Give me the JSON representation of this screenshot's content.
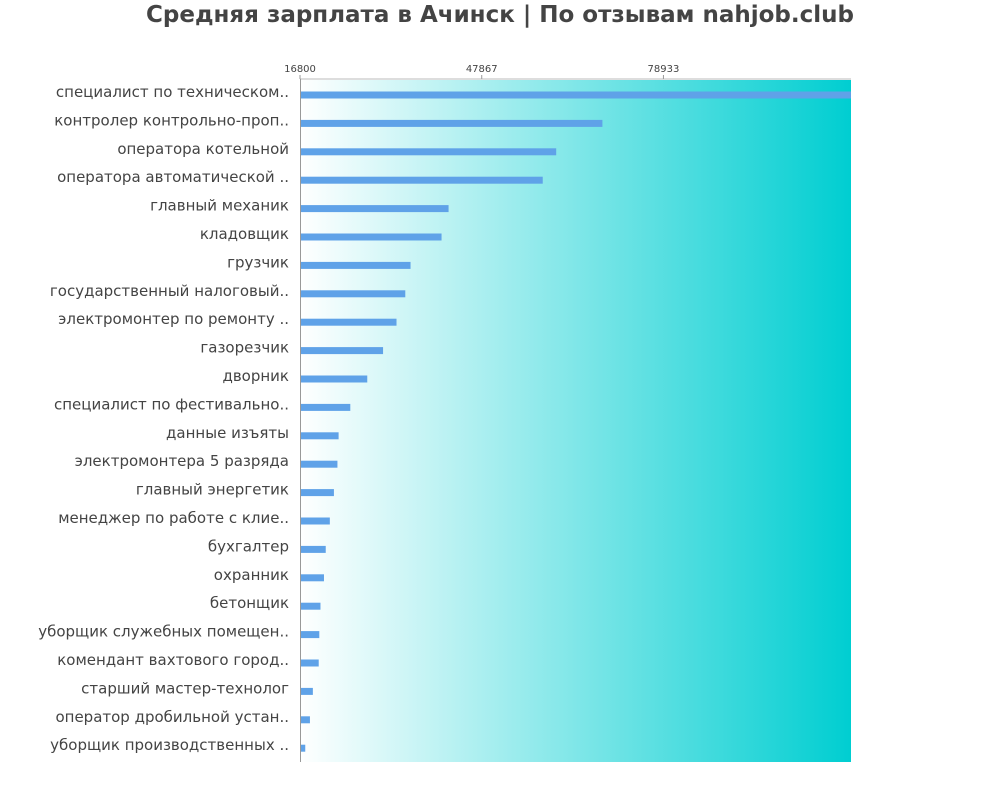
{
  "chart_data": {
    "type": "bar",
    "orientation": "horizontal",
    "title": "Средняя зарплата в Ачинск | По отзывам nahjob.club",
    "xlabel": "",
    "ylabel": "",
    "xlim": [
      16800,
      111000
    ],
    "x_ticks": [
      16800,
      47867,
      78933
    ],
    "x_tick_labels": [
      "16800",
      "47867",
      "78933"
    ],
    "x_axis_position": "top",
    "grid": false,
    "legend": "none",
    "categories": [
      "специалист по техническом..",
      "контролер контрольно-проп..",
      "оператора котельной",
      "оператора автоматической ..",
      "главный механик",
      "кладовщик",
      "грузчик",
      "государственный налоговый..",
      "электромонтер по ремонту ..",
      "газорезчик",
      "дворник",
      "специалист по фестивально..",
      "данные изъяты",
      "электромонтера 5 разряда",
      "главный энергетик",
      "менеджер по работе с клие..",
      "бухгалтер",
      "охранник",
      "бетонщик",
      "уборщик служебных помещен..",
      "комендант вахтового город..",
      "старший мастер-технолог",
      "оператор дробильной устан..",
      "уборщик производственных .."
    ],
    "values": [
      111000,
      68500,
      60600,
      58300,
      42200,
      41000,
      35700,
      34800,
      33300,
      31000,
      28300,
      25400,
      23400,
      23200,
      22600,
      21900,
      21200,
      20900,
      20300,
      20100,
      20000,
      19000,
      18500,
      17700
    ],
    "bar_color": "#5fa2e8",
    "background_gradient": [
      "#ffffff",
      "#00ced1"
    ]
  }
}
